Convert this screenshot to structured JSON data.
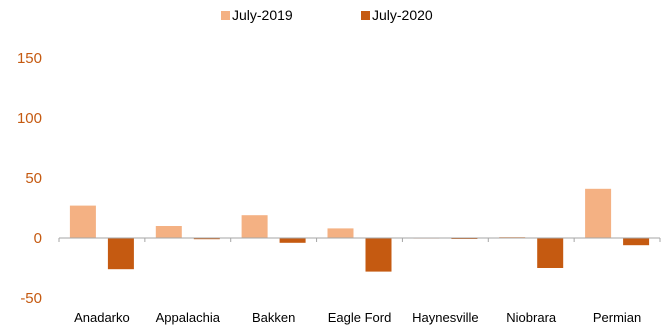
{
  "chart_data": {
    "type": "bar",
    "title": "",
    "xlabel": "",
    "ylabel": "",
    "categories": [
      "Anadarko",
      "Appalachia",
      "Bakken",
      "Eagle Ford",
      "Haynesville",
      "Niobrara",
      "Permian"
    ],
    "series": [
      {
        "name": "July-2019",
        "color": "#f4b183",
        "values": [
          27,
          10,
          19,
          8,
          0.3,
          0.8,
          41
        ]
      },
      {
        "name": "July-2020",
        "color": "#c55a11",
        "values": [
          -26,
          -1,
          -4,
          -28,
          -0.5,
          -25,
          -6
        ]
      }
    ],
    "ylim": [
      -50,
      150
    ],
    "yticks": [
      -50,
      0,
      50,
      100,
      150
    ],
    "grid": false,
    "legend": "top-center"
  }
}
